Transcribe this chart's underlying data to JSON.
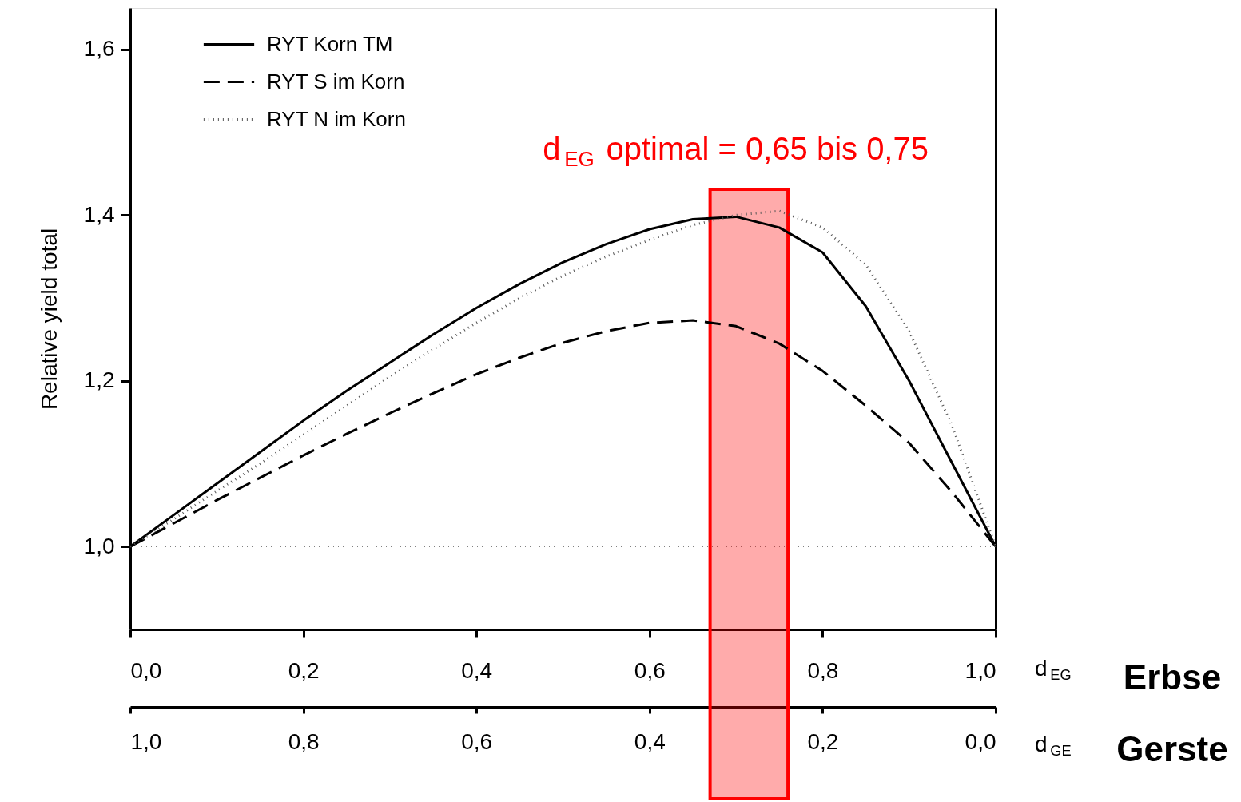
{
  "chart_data": {
    "type": "line",
    "xlabel": "d$_{EG}$",
    "x2label": "d$_{GE}$",
    "ylabel": "Relative yield total",
    "x": [
      0,
      0.05,
      0.1,
      0.15,
      0.2,
      0.25,
      0.3,
      0.35,
      0.4,
      0.45,
      0.5,
      0.55,
      0.6,
      0.65,
      0.7,
      0.75,
      0.8,
      0.85,
      0.9,
      0.95,
      1.0
    ],
    "series": [
      {
        "name": "RYT Korn TM",
        "color": "#000000",
        "line_style": "solid",
        "values": [
          1.0,
          1.038,
          1.076,
          1.114,
          1.152,
          1.188,
          1.222,
          1.256,
          1.288,
          1.317,
          1.343,
          1.365,
          1.383,
          1.395,
          1.398,
          1.385,
          1.355,
          1.29,
          1.2,
          1.1,
          1.0
        ]
      },
      {
        "name": "RYT S im Korn",
        "color": "#000000",
        "line_style": "dashed",
        "values": [
          1.0,
          1.028,
          1.056,
          1.083,
          1.11,
          1.136,
          1.161,
          1.185,
          1.208,
          1.228,
          1.246,
          1.26,
          1.27,
          1.273,
          1.266,
          1.245,
          1.212,
          1.17,
          1.125,
          1.065,
          1.0
        ]
      },
      {
        "name": "RYT N im Korn",
        "color": "#555555",
        "line_style": "dotted",
        "values": [
          1.0,
          1.033,
          1.067,
          1.1,
          1.135,
          1.17,
          1.205,
          1.238,
          1.27,
          1.3,
          1.327,
          1.35,
          1.37,
          1.388,
          1.4,
          1.405,
          1.385,
          1.34,
          1.26,
          1.145,
          1.0
        ]
      }
    ],
    "xlim": [
      0,
      1
    ],
    "xticks": [
      {
        "value": 0,
        "label": "0,0"
      },
      {
        "value": 0.2,
        "label": "0,2"
      },
      {
        "value": 0.4,
        "label": "0,4"
      },
      {
        "value": 0.6,
        "label": "0,6"
      },
      {
        "value": 0.8,
        "label": "0,8"
      },
      {
        "value": 1,
        "label": "1,0"
      }
    ],
    "x2lim": [
      1,
      0
    ],
    "x2ticks": [
      {
        "value": 1,
        "label": "1,0"
      },
      {
        "value": 0.8,
        "label": "0,8"
      },
      {
        "value": 0.6,
        "label": "0,6"
      },
      {
        "value": 0.4,
        "label": "0,4"
      },
      {
        "value": 0.2,
        "label": "0,2"
      },
      {
        "value": 0,
        "label": "0,0"
      }
    ],
    "ylim": [
      0.9,
      1.65
    ],
    "yticks": [
      {
        "value": 1.0,
        "label": "1,0"
      },
      {
        "value": 1.2,
        "label": "1,2"
      },
      {
        "value": 1.4,
        "label": "1,4"
      },
      {
        "value": 1.6,
        "label": "1,6"
      }
    ],
    "ref_lines": [
      {
        "axis": "y",
        "value": 1.0,
        "color": "#808080",
        "line_style": "dotted"
      }
    ],
    "bands": [
      {
        "axis": "x",
        "from": 0.67,
        "to": 0.76,
        "label": "d$_{EG}$ optimal = 0,65 bis 0,75",
        "color": "#ff0000"
      }
    ],
    "annotations": [
      "Erbse",
      "Gerste"
    ],
    "legend": "top left",
    "grid": false
  }
}
